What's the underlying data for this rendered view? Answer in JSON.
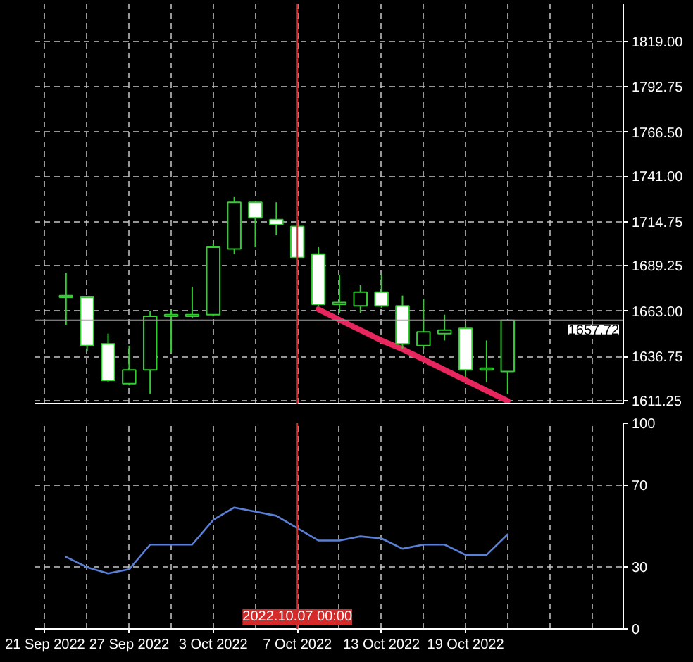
{
  "chart_data": [
    {
      "type": "candlestick",
      "categories": [
        "21 Sep 2022",
        null,
        null,
        null,
        "27 Sep 2022",
        null,
        null,
        null,
        "3 Oct 2022",
        null,
        null,
        null,
        "7 Oct 2022",
        null,
        null,
        null,
        "13 Oct 2022",
        null,
        null,
        null,
        "19 Oct 2022",
        null,
        null,
        null,
        null,
        null,
        null,
        null
      ],
      "ohlc": [
        null,
        [
          1671,
          1685,
          1655,
          1672
        ],
        [
          1671,
          1671,
          1640,
          1643
        ],
        [
          1644,
          1650,
          1622,
          1623
        ],
        [
          1621,
          1643,
          1620,
          1629
        ],
        [
          1629,
          1663,
          1615,
          1660
        ],
        [
          1660,
          1664,
          1639,
          1661
        ],
        [
          1660,
          1677,
          1659,
          1661
        ],
        [
          1661,
          1702,
          1660,
          1700
        ],
        [
          1699,
          1729,
          1696,
          1726
        ],
        [
          1726,
          1726,
          1700,
          1717
        ],
        [
          1716,
          1726,
          1707,
          1713
        ],
        [
          1712,
          1713,
          1694,
          1694
        ],
        [
          1696,
          1700,
          1666,
          1667
        ],
        [
          1667,
          1684,
          1662,
          1668
        ],
        [
          1666,
          1678,
          1662,
          1674
        ],
        [
          1674,
          1684,
          1665,
          1666
        ],
        [
          1666,
          1672,
          1641,
          1644
        ],
        [
          1643,
          1670,
          1641,
          1651
        ],
        [
          1650,
          1661,
          1646,
          1652
        ],
        [
          1653,
          1655,
          1625,
          1629
        ],
        [
          1629,
          1646,
          1622,
          1630
        ],
        [
          1628,
          1658,
          1615,
          1657.72
        ],
        null,
        null,
        null,
        null,
        null
      ],
      "color": "#33cc33",
      "series": [
        {
          "type": "line",
          "values": [
            null,
            null,
            null,
            null,
            null,
            null,
            null,
            null,
            null,
            null,
            null,
            null,
            null,
            1664,
            1658,
            1652,
            1646,
            1641,
            1635,
            1629,
            1623,
            1617,
            1611,
            null,
            null,
            null,
            null,
            null
          ],
          "color": "#e8265e"
        }
      ],
      "ylim": [
        1609.5,
        1841
      ],
      "yticks": [
        {
          "value": 1611.25,
          "label": "1611.25"
        },
        1636.75,
        {
          "value": 1663,
          "label": "1663.00"
        },
        1689.25,
        1714.75,
        {
          "value": 1741,
          "label": "1741.00"
        },
        {
          "value": 1766.5,
          "label": "1766.50"
        },
        1792.75,
        {
          "value": 1819,
          "label": "1819.00"
        }
      ],
      "tick_labels": "y",
      "grid": true,
      "ref_lines": [
        {
          "axis": "y",
          "value": 1657.72,
          "label": "1657.72",
          "color": "#a0a0a0"
        },
        {
          "axis": "x",
          "value": "7 Oct 2022",
          "color": "#d42a2a"
        }
      ]
    },
    {
      "type": "line",
      "categories": [
        "21 Sep 2022",
        null,
        null,
        null,
        "27 Sep 2022",
        null,
        null,
        null,
        "3 Oct 2022",
        null,
        null,
        null,
        "7 Oct 2022",
        null,
        null,
        null,
        "13 Oct 2022",
        null,
        null,
        null,
        "19 Oct 2022",
        null,
        null,
        null,
        null,
        null,
        null,
        null
      ],
      "values": [
        null,
        35,
        30,
        27,
        29,
        41,
        41,
        41,
        53,
        59,
        57,
        55,
        49,
        43,
        43,
        45,
        44,
        39,
        41,
        41,
        36,
        36,
        46,
        null,
        null,
        null,
        null,
        null
      ],
      "color": "#5a7fd6",
      "ylim": [
        0,
        100
      ],
      "yticks": [
        0,
        30,
        70,
        100
      ],
      "grid": true,
      "ref_lines": [
        {
          "axis": "x",
          "value": "7 Oct 2022",
          "label": "2022.10.07 00:00",
          "color": "#d42a2a"
        }
      ]
    }
  ]
}
